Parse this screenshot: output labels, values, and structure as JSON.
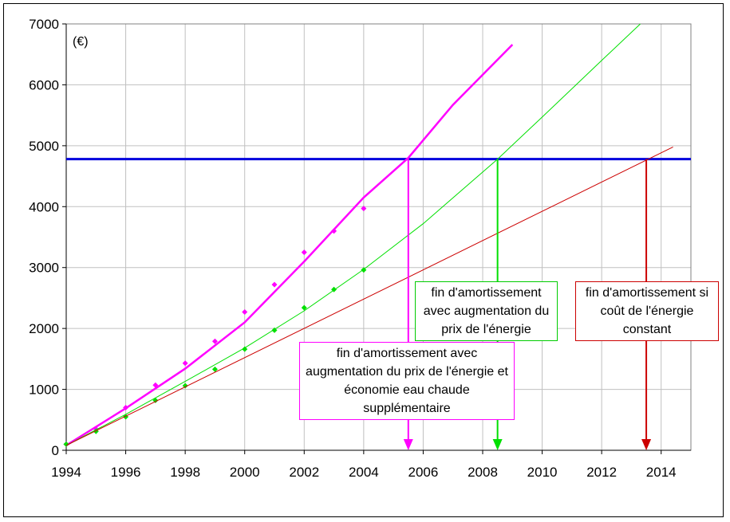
{
  "chart_data": {
    "type": "line",
    "unit_label": "(€)",
    "xlim": [
      1994,
      2015
    ],
    "ylim": [
      0,
      7000
    ],
    "x_ticks": [
      1994,
      1996,
      1998,
      2000,
      2002,
      2004,
      2006,
      2008,
      2010,
      2012,
      2014
    ],
    "y_ticks": [
      0,
      1000,
      2000,
      3000,
      4000,
      5000,
      6000,
      7000
    ],
    "grid": true,
    "series": [
      {
        "color": "#ff00ff",
        "points_x": [
          1994,
          1995,
          1996,
          1997,
          1998,
          1999,
          2000,
          2001,
          2002,
          2003,
          2004
        ],
        "points_y": [
          100,
          350,
          700,
          1070,
          1430,
          1790,
          2270,
          2720,
          3250,
          3600,
          3970
        ],
        "trend": [
          [
            1994,
            80
          ],
          [
            1996,
            690
          ],
          [
            1998,
            1340
          ],
          [
            2000,
            2100
          ],
          [
            2002,
            3100
          ],
          [
            2004,
            4150
          ],
          [
            2005.5,
            4800
          ],
          [
            2007,
            5670
          ],
          [
            2009,
            6660
          ]
        ]
      },
      {
        "color": "#00e000",
        "points_x": [
          1994,
          1995,
          1996,
          1997,
          1998,
          1999,
          2000,
          2001,
          2002,
          2003,
          2004
        ],
        "points_y": [
          100,
          310,
          550,
          820,
          1060,
          1330,
          1660,
          1970,
          2340,
          2640,
          2960
        ],
        "trend": [
          [
            1994,
            80
          ],
          [
            1996,
            590
          ],
          [
            1998,
            1130
          ],
          [
            2000,
            1680
          ],
          [
            2002,
            2290
          ],
          [
            2004,
            2970
          ],
          [
            2006,
            3720
          ],
          [
            2008.5,
            4780
          ],
          [
            2010,
            5470
          ],
          [
            2012,
            6400
          ],
          [
            2013.3,
            7000
          ]
        ]
      },
      {
        "color": "#cc0000",
        "trend": [
          [
            1994,
            80
          ],
          [
            2014.4,
            4980
          ]
        ]
      }
    ],
    "threshold": {
      "y": 4780,
      "color": "#0000dd"
    },
    "annotations": [
      {
        "text": "fin d'amortissement avec augmentation du prix de l'énergie et économie eau chaude supplémentaire",
        "x": 2005.5,
        "color": "#ff00ff"
      },
      {
        "text": "fin d'amortissement avec augmentation du prix de l'énergie",
        "x": 2008.5,
        "color": "#00e000"
      },
      {
        "text": "fin d'amortissement si coût de l'énergie constant",
        "x": 2013.5,
        "color": "#cc0000"
      }
    ]
  }
}
